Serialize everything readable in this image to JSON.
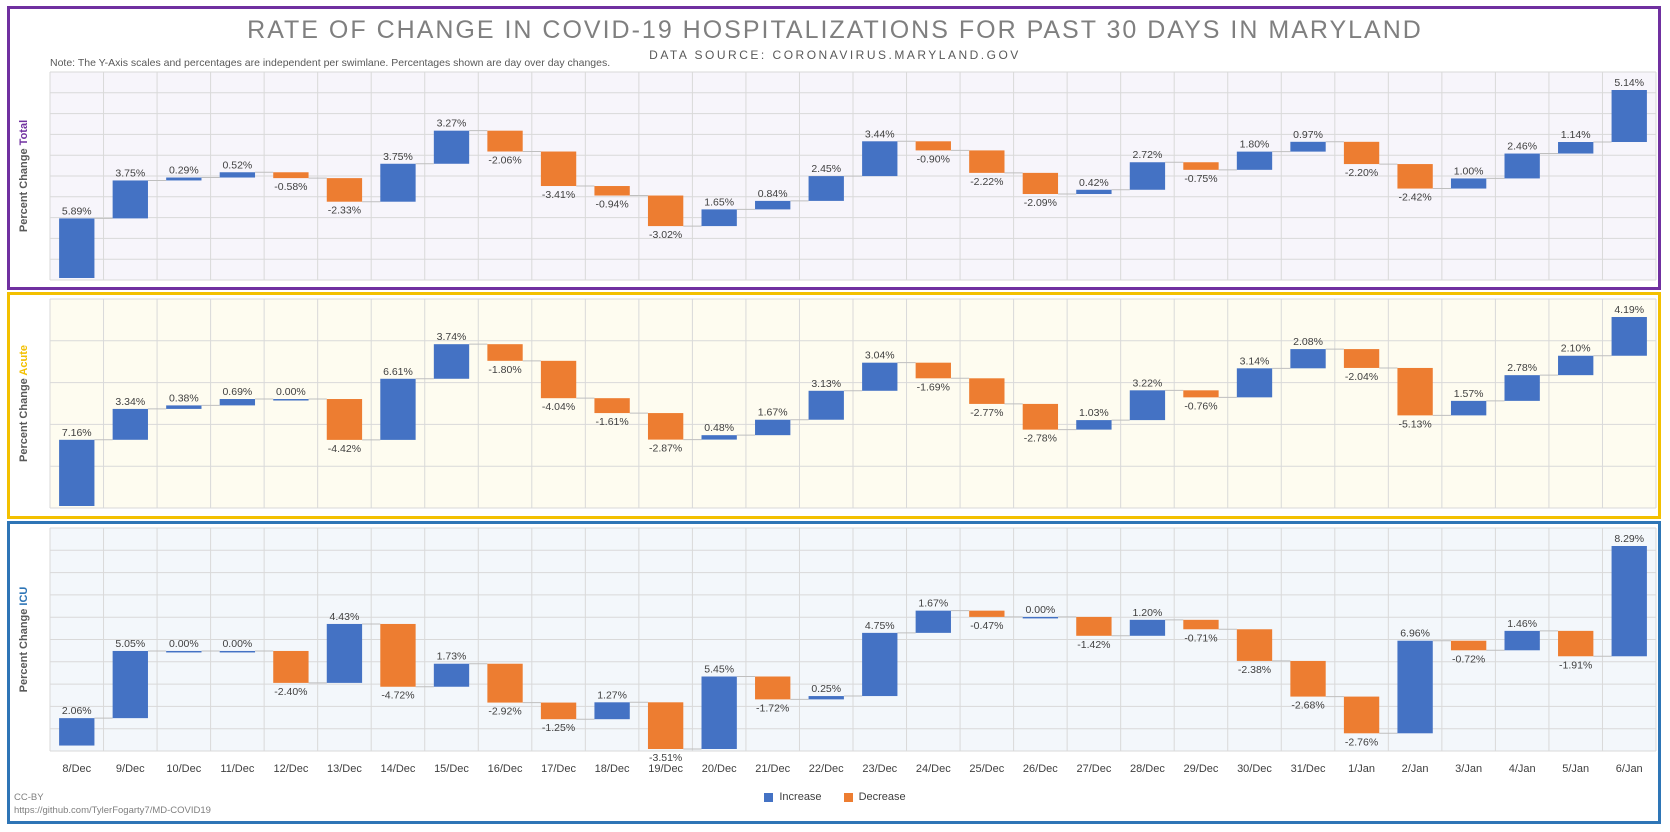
{
  "title": "RATE OF CHANGE IN COVID-19 HOSPITALIZATIONS FOR PAST 30 DAYS IN MARYLAND",
  "subtitle": "DATA SOURCE: CORONAVIRUS.MARYLAND.GOV",
  "note": "Note: The Y-Axis scales and percentages are independent per swimlane. Percentages shown are day over day changes.",
  "footer": {
    "license": "CC-BY",
    "url": "https://github.com/TylerFogarty7/MD-COVID19"
  },
  "colors": {
    "increase": "#4472c4",
    "decrease": "#ed7d31",
    "total": "#7030a0",
    "acute": "#f3c000",
    "icu": "#2e75b6"
  },
  "chart_data": {
    "type": "bar",
    "chart_style": "waterfall",
    "categories": [
      "8/Dec",
      "9/Dec",
      "10/Dec",
      "11/Dec",
      "12/Dec",
      "13/Dec",
      "14/Dec",
      "15/Dec",
      "16/Dec",
      "17/Dec",
      "18/Dec",
      "19/Dec",
      "20/Dec",
      "21/Dec",
      "22/Dec",
      "23/Dec",
      "24/Dec",
      "25/Dec",
      "26/Dec",
      "27/Dec",
      "28/Dec",
      "29/Dec",
      "30/Dec",
      "31/Dec",
      "1/Jan",
      "2/Jan",
      "3/Jan",
      "4/Jan",
      "5/Jan",
      "6/Jan"
    ],
    "legend": {
      "position": "bottom",
      "entries": [
        "Increase",
        "Decrease"
      ]
    },
    "grid": true,
    "panels": [
      {
        "name": "Total",
        "ylabel_prefix": "Percent Change",
        "ylabel_name": "Total",
        "values": [
          5.89,
          3.75,
          0.29,
          0.52,
          -0.58,
          -2.33,
          3.75,
          3.27,
          -2.06,
          -3.41,
          -0.94,
          -3.02,
          1.65,
          0.84,
          2.45,
          3.44,
          -0.9,
          -2.22,
          -2.09,
          0.42,
          2.72,
          -0.75,
          1.8,
          0.97,
          -2.2,
          -2.42,
          1.0,
          2.46,
          1.14,
          5.14
        ],
        "labels": [
          "5.89%",
          "3.75%",
          "0.29%",
          "0.52%",
          "-0.58%",
          "-2.33%",
          "3.75%",
          "3.27%",
          "-2.06%",
          "-3.41%",
          "-0.94%",
          "-3.02%",
          "1.65%",
          "0.84%",
          "2.45%",
          "3.44%",
          "-0.90%",
          "-2.22%",
          "-2.09%",
          "0.42%",
          "2.72%",
          "-0.75%",
          "1.80%",
          "0.97%",
          "-2.20%",
          "-2.42%",
          "1.00%",
          "2.46%",
          "1.14%",
          "5.14%"
        ]
      },
      {
        "name": "Acute",
        "ylabel_prefix": "Percent Change",
        "ylabel_name": "Acute",
        "values": [
          7.16,
          3.34,
          0.38,
          0.69,
          0.0,
          -4.42,
          6.61,
          3.74,
          -1.8,
          -4.04,
          -1.61,
          -2.87,
          0.48,
          1.67,
          3.13,
          3.04,
          -1.69,
          -2.77,
          -2.78,
          1.03,
          3.22,
          -0.76,
          3.14,
          2.08,
          -2.04,
          -5.13,
          1.57,
          2.78,
          2.1,
          4.19
        ],
        "labels": [
          "7.16%",
          "3.34%",
          "0.38%",
          "0.69%",
          "0.00%",
          "-4.42%",
          "6.61%",
          "3.74%",
          "-1.80%",
          "-4.04%",
          "-1.61%",
          "-2.87%",
          "0.48%",
          "1.67%",
          "3.13%",
          "3.04%",
          "-1.69%",
          "-2.77%",
          "-2.78%",
          "1.03%",
          "3.22%",
          "-0.76%",
          "3.14%",
          "2.08%",
          "-2.04%",
          "-5.13%",
          "1.57%",
          "2.78%",
          "2.10%",
          "4.19%"
        ]
      },
      {
        "name": "ICU",
        "ylabel_prefix": "Percent Change",
        "ylabel_name": "ICU",
        "values": [
          2.06,
          5.05,
          0.0,
          0.0,
          -2.4,
          4.43,
          -4.72,
          1.73,
          -2.92,
          -1.25,
          1.27,
          -3.51,
          5.45,
          -1.72,
          0.25,
          4.75,
          1.67,
          -0.47,
          0.0,
          -1.42,
          1.2,
          -0.71,
          -2.38,
          -2.68,
          -2.76,
          6.96,
          -0.72,
          1.46,
          -1.91,
          8.29
        ],
        "labels": [
          "2.06%",
          "5.05%",
          "0.00%",
          "0.00%",
          "-2.40%",
          "4.43%",
          "-4.72%",
          "1.73%",
          "-2.92%",
          "-1.25%",
          "1.27%",
          "-3.51%",
          "5.45%",
          "-1.72%",
          "0.25%",
          "4.75%",
          "1.67%",
          "-0.47%",
          "0.00%",
          "-1.42%",
          "1.20%",
          "-0.71%",
          "-2.38%",
          "-2.68%",
          "-2.76%",
          "6.96%",
          "-0.72%",
          "1.46%",
          "-1.91%",
          "8.29%"
        ]
      }
    ]
  }
}
